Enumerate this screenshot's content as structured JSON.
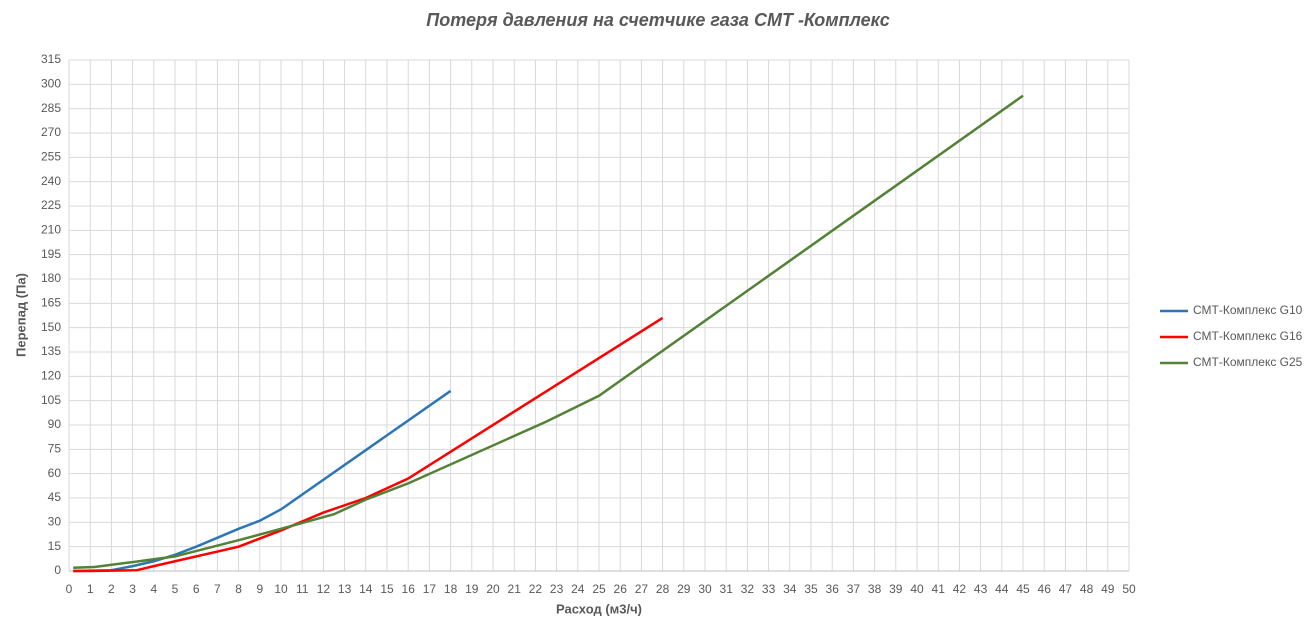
{
  "chart_data": {
    "type": "line",
    "title": "Потеря давления на счетчике газа СМТ -Комплекс",
    "x_label": "Расход (м3/ч)",
    "y_label": "Перепад (Па)",
    "xlim": [
      0,
      50
    ],
    "ylim": [
      0,
      315
    ],
    "xticks": [
      0,
      1,
      2,
      3,
      4,
      5,
      6,
      7,
      8,
      9,
      10,
      11,
      12,
      13,
      14,
      15,
      16,
      17,
      18,
      19,
      20,
      21,
      22,
      23,
      24,
      25,
      26,
      27,
      28,
      29,
      30,
      31,
      32,
      33,
      34,
      35,
      36,
      37,
      38,
      39,
      40,
      41,
      42,
      43,
      44,
      45,
      46,
      47,
      48,
      49,
      50
    ],
    "yticks": [
      0,
      15,
      30,
      45,
      60,
      75,
      90,
      105,
      120,
      135,
      150,
      165,
      180,
      195,
      210,
      225,
      240,
      255,
      270,
      285,
      300,
      315
    ],
    "grid": true,
    "legend": "right",
    "series": [
      {
        "name": "СМТ-Комплекс G10",
        "color": "#2e75b6",
        "x": [
          0.2,
          2,
          3,
          4,
          5,
          6,
          8,
          9,
          10,
          18
        ],
        "values": [
          0,
          0.5,
          3,
          6,
          10,
          15,
          26,
          31,
          38,
          111
        ]
      },
      {
        "name": "СМТ-Комплекс G16",
        "color": "#ff0000",
        "x": [
          0.2,
          1,
          3.2,
          4,
          8,
          10,
          12,
          14,
          16,
          28
        ],
        "values": [
          0,
          0,
          0.5,
          3,
          15,
          25,
          36,
          45,
          57,
          156
        ]
      },
      {
        "name": "СМТ-Комплекс G25",
        "color": "#538135",
        "x": [
          0.2,
          1.2,
          3,
          5,
          8,
          10,
          12.5,
          14,
          16,
          22.5,
          25,
          45
        ],
        "values": [
          2,
          2.5,
          5.5,
          9,
          19,
          26,
          35,
          44,
          54,
          92,
          108,
          293
        ]
      }
    ]
  }
}
